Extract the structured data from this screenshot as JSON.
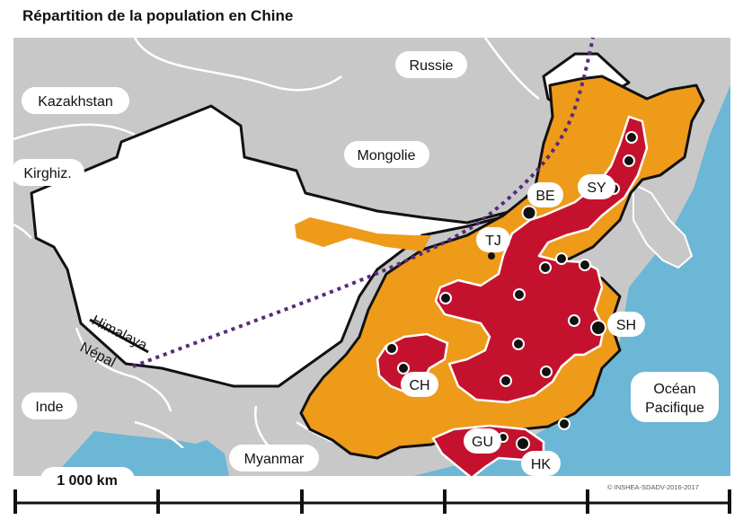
{
  "title": "Répartition de la population en Chine",
  "colors": {
    "ocean": "#6cb6d6",
    "land_other": "#c8c8c8",
    "china_sparse": "#ffffff",
    "china_medium": "#ee9b1a",
    "china_dense": "#c4122e",
    "divide_line": "#5a2a78",
    "border": "#111111"
  },
  "countries": {
    "russia": "Russie",
    "kazakhstan": "Kazakhstan",
    "mongolia": "Mongolie",
    "kyrgyzstan": "Kirghiz.",
    "nepal": "Népal",
    "india": "Inde",
    "myanmar": "Myanmar"
  },
  "features": {
    "himalaya": "Himalaya",
    "ocean_line1": "Océan",
    "ocean_line2": "Pacifique"
  },
  "cities": {
    "beijing": "BE",
    "tianjin": "TJ",
    "shenyang": "SY",
    "shanghai": "SH",
    "chengdu": "CH",
    "guangzhou": "GU",
    "hongkong": "HK"
  },
  "scale": {
    "label": "1 000 km"
  },
  "credit": "© INSHEA-SDADV-2016-2017"
}
